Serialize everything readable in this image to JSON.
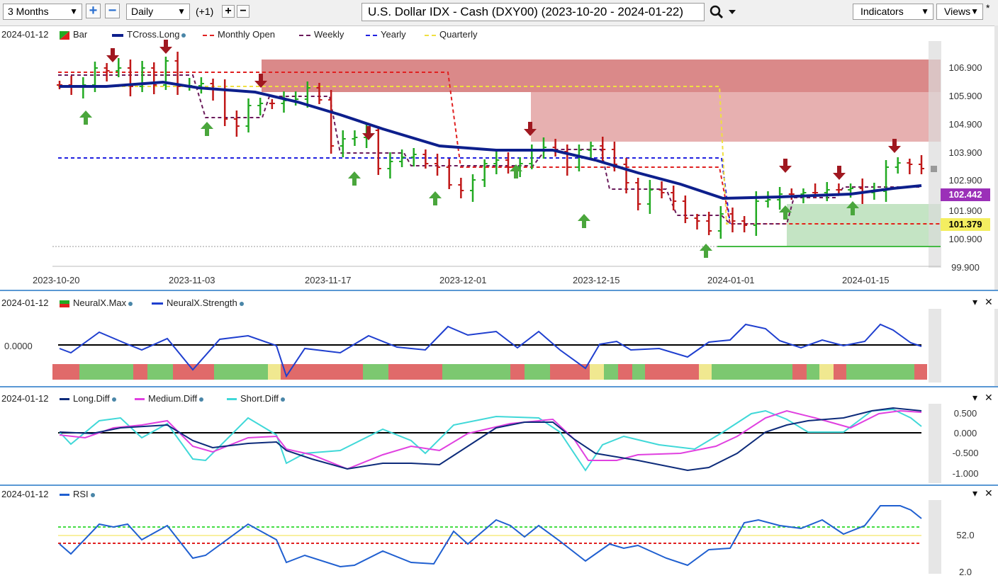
{
  "toolbar": {
    "range": "3 Months",
    "add_label": "+",
    "remove_label": "−",
    "interval": "Daily",
    "offset": "(+1)",
    "zoom_in_label": "+",
    "zoom_out_label": "−",
    "title": "U.S. Dollar IDX - Cash (DXY00) (2023-10-20 - 2024-01-22)",
    "indicators_label": "Indicators",
    "views_label": "Views",
    "search_icon": "magnifier-icon"
  },
  "price_panel": {
    "date": "2024-01-12",
    "legend": [
      {
        "label": "Bar",
        "color": "#22aa22"
      },
      {
        "label": "TCross.Long",
        "color": "#0d1f8c"
      },
      {
        "label": "Monthly Open",
        "color": "#e02020"
      },
      {
        "label": "Weekly",
        "color": "#6a1a5a"
      },
      {
        "label": "Yearly",
        "color": "#2020e0"
      },
      {
        "label": "Quarterly",
        "color": "#f0e040"
      }
    ],
    "price_labels": [
      "106.900",
      "105.900",
      "104.900",
      "103.900",
      "102.900",
      "101.900",
      "100.900",
      "99.900"
    ],
    "date_labels": [
      "2023-10-20",
      "2023-11-03",
      "2023-11-17",
      "2023-12-01",
      "2023-12-15",
      "2024-01-01",
      "2024-01-15"
    ],
    "badge_tcross": "102.442",
    "badge_yellow": "101.379",
    "colors": {
      "tcross_badge": "#9b30b8",
      "yellow_badge": "#f4ee60",
      "down_arrow": "#a01820",
      "up_arrow": "#4aa63c"
    }
  },
  "neural_panel": {
    "date": "2024-01-12",
    "legend": [
      {
        "label": "NeuralX.Max",
        "color": "#22aa22"
      },
      {
        "label": "NeuralX.Strength",
        "color": "#1f3fcf"
      }
    ],
    "zero_label": "0.0000"
  },
  "diff_panel": {
    "date": "2024-01-12",
    "legend": [
      {
        "label": "Long.Diff",
        "color": "#0d2b7a"
      },
      {
        "label": "Medium.Diff",
        "color": "#e040e0"
      },
      {
        "label": "Short.Diff",
        "color": "#40d8d8"
      }
    ],
    "labels": [
      "0.500",
      "0.000",
      "-0.500",
      "-1.000"
    ]
  },
  "rsi_panel": {
    "date": "2024-01-12",
    "legend": [
      {
        "label": "RSI",
        "color": "#1f5fd0"
      }
    ],
    "labels": [
      "52.0",
      "2.0"
    ]
  },
  "panel_controls": {
    "collapse": "▾",
    "close": "✕"
  }
}
